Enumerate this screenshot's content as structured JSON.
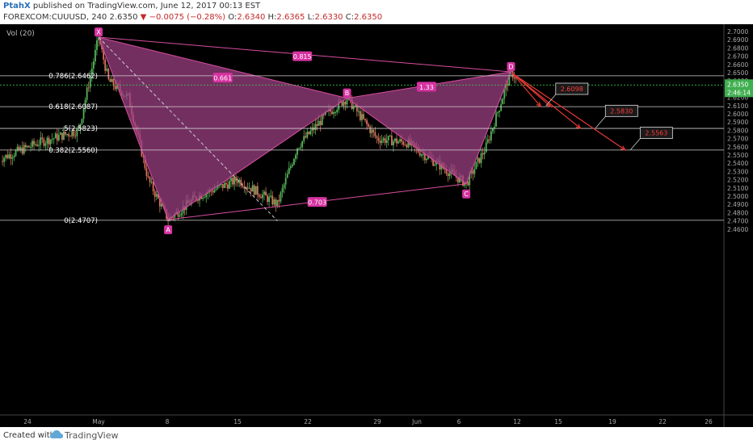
{
  "header": {
    "author": "PtahX",
    "published": "published on TradingView.com, June 12, 2017 00:13 EST",
    "symbol": "FOREXCOM:CUUUSD, 240",
    "last": "2.6350",
    "change": "−0.0075 (−0.28%)",
    "ohlc": {
      "o_label": "O:",
      "o": "2.6340",
      "h_label": "H:",
      "h": "2.6365",
      "l_label": "L:",
      "l": "2.6330",
      "c_label": "C:",
      "c": "2.6350"
    }
  },
  "footer": {
    "created_with": "Created with",
    "brand": "TradingView"
  },
  "colors": {
    "background": "#000000",
    "up": "#55b359",
    "down": "#d9705b",
    "pattern_fill": "#9b3f82",
    "pattern_line": "#d84ea0",
    "label_bg": "#d632a0",
    "arrow": "#e53935",
    "dashed_price": "#36c24a",
    "current_badge": "#3fae4f"
  },
  "chart_data": {
    "type": "candlestick",
    "indicator": "Vol (20)",
    "ylim": [
      2.46,
      2.705
    ],
    "y_ticks": [
      "2.7000",
      "2.6900",
      "2.6800",
      "2.6700",
      "2.6600",
      "2.6500",
      "2.6400",
      "2.6300",
      "2.6200",
      "2.6100",
      "2.6000",
      "2.5900",
      "2.5800",
      "2.5700",
      "2.5600",
      "2.5500",
      "2.5400",
      "2.5300",
      "2.5200",
      "2.5100",
      "2.5000",
      "2.4900",
      "2.4800",
      "2.4700",
      "2.4600"
    ],
    "x_ticks": [
      "24",
      "May",
      "8",
      "15",
      "22",
      "29",
      "Jun",
      "6",
      "12",
      "15",
      "19",
      "22",
      "26"
    ],
    "current_price": "2.6350",
    "current_time": "2:46:14",
    "fib_levels": [
      {
        "label": "0.786(2.6462)",
        "price": 2.6462
      },
      {
        "label": "0.618(2.6087)",
        "price": 2.6087
      },
      {
        "label": ".5(2.5823)",
        "price": 2.5823
      },
      {
        "label": "0.382(2.5560)",
        "price": 2.556
      },
      {
        "label": "0(2.4707)",
        "price": 2.4707
      }
    ],
    "pattern_points": [
      {
        "label": "X",
        "price": 2.693,
        "day": 0
      },
      {
        "label": "A",
        "price": 2.4715,
        "day": 7
      },
      {
        "label": "B",
        "price": 2.619,
        "day": 25
      },
      {
        "label": "C",
        "price": 2.515,
        "day": 37
      },
      {
        "label": "D",
        "price": 2.651,
        "day": 41.5
      }
    ],
    "ratios": [
      {
        "label": "0.661",
        "price": 2.644,
        "day": 12.5
      },
      {
        "label": "1.33",
        "price": 2.633,
        "day": 33
      },
      {
        "label": "0.815",
        "price": 2.67,
        "day": 20.5
      },
      {
        "label": "0.703",
        "price": 2.493,
        "day": 22
      }
    ],
    "targets": [
      {
        "label": "2.6098",
        "price": 2.6098,
        "day": 46
      },
      {
        "label": "2.5830",
        "price": 2.583,
        "day": 51
      },
      {
        "label": "2.5563",
        "price": 2.5563,
        "day": 54.5
      }
    ]
  }
}
